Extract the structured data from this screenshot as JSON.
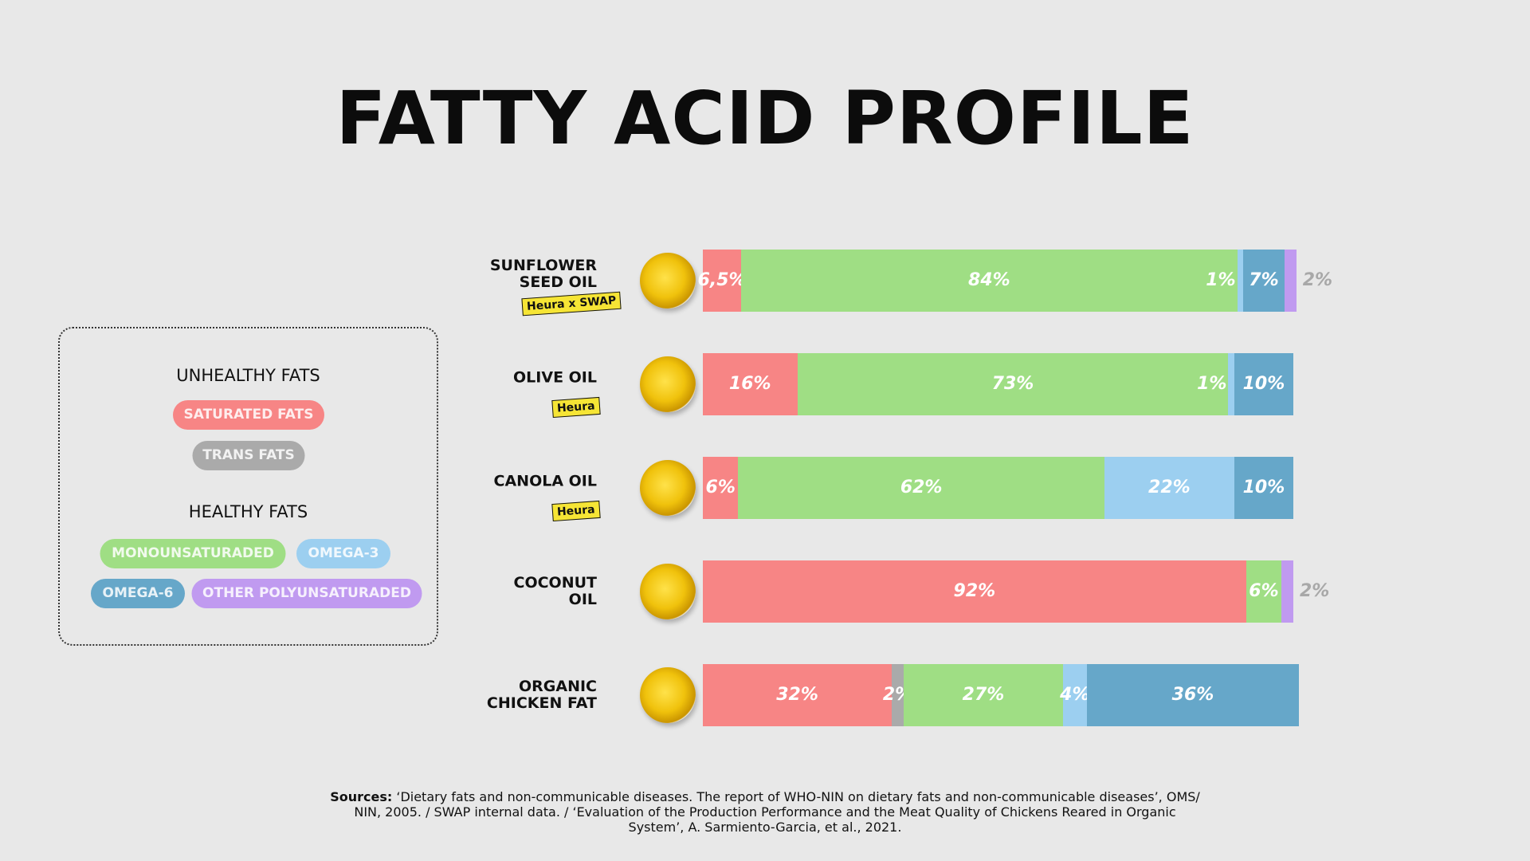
{
  "chart_data": {
    "type": "stacked_bar",
    "orientation": "horizontal",
    "title": "FATTY ACID PROFILE",
    "categories": [
      "SUNFLOWER\nSEED OIL",
      "OLIVE OIL",
      "CANOLA OIL",
      "COCONUT\nOIL",
      "ORGANIC\nCHICKEN FAT"
    ],
    "logos": [
      "Heura x SWAP",
      "Heura",
      "Heura"
    ],
    "legend_groups": [
      "UNHEALTHY FATS",
      "HEALTHY FATS"
    ],
    "series": [
      {
        "name": "SATURATED FATS",
        "color": "#f78585",
        "values": [
          6.5,
          16,
          6,
          92,
          32
        ],
        "value_labels": [
          "6,5%",
          "16%",
          "6%",
          "92%",
          "32%"
        ]
      },
      {
        "name": "TRANS FATS",
        "color": "#aaaaaa",
        "values": [
          0,
          0,
          0,
          0,
          2
        ],
        "value_labels": [
          null,
          null,
          null,
          null,
          "2%"
        ]
      },
      {
        "name": "MONOUNSATURADED",
        "color": "#9fde84",
        "values": [
          84,
          73,
          62,
          6,
          27
        ],
        "value_labels": [
          "84%",
          "73%",
          "62%",
          "6%",
          "27%"
        ]
      },
      {
        "name": "OMEGA-3",
        "color": "#9ccff0",
        "values": [
          1,
          1,
          22,
          0,
          4
        ],
        "value_labels": [
          "1%",
          "1%",
          "22%",
          null,
          "4%"
        ]
      },
      {
        "name": "OMEGA-6",
        "color": "#66a7c9",
        "values": [
          7,
          10,
          10,
          0,
          36
        ],
        "value_labels": [
          "7%",
          "10%",
          "10%",
          null,
          "36%"
        ]
      },
      {
        "name": "OTHER POLYUNSATURADED",
        "color": "#c09af0",
        "values": [
          2,
          0,
          0,
          2,
          0
        ],
        "value_labels": [
          "2%",
          null,
          null,
          "2%",
          null
        ]
      }
    ],
    "footer": {
      "label": "Sources:",
      "text": "‘Dietary fats and non-communicable diseases. The report of WHO-NIN on dietary fats and non-communicable diseases’, OMS/ NIN, 2005. / SWAP internal data. / ‘Evaluation of the Production Performance and the Meat Quality of Chickens Reared in Organic System’, A. Sarmiento-Garcia, et al., 2021."
    }
  }
}
